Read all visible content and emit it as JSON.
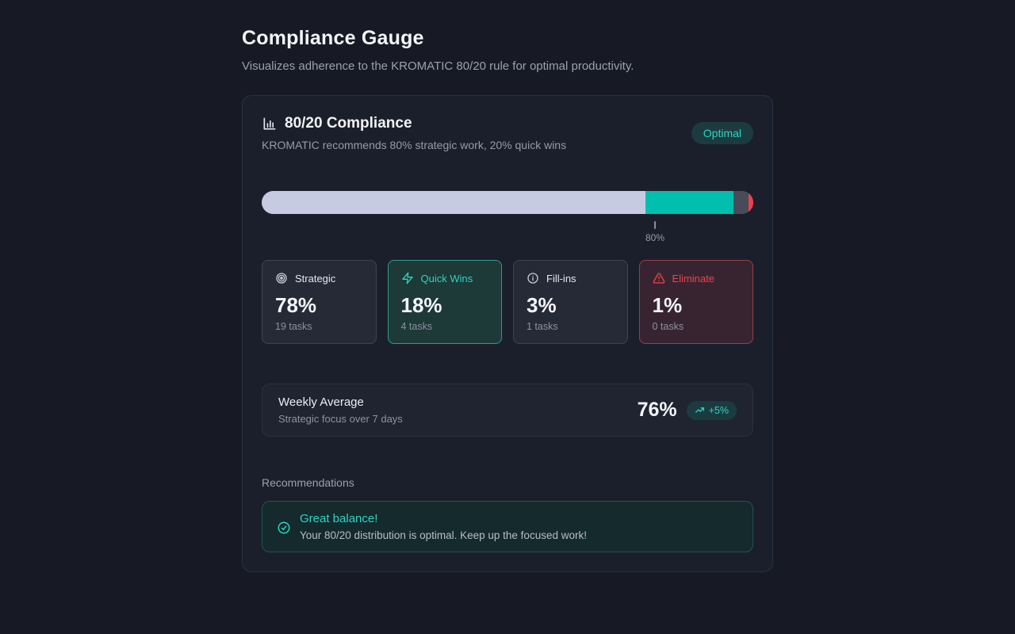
{
  "page": {
    "title": "Compliance Gauge",
    "subtitle": "Visualizes adherence to the KROMATIC 80/20 rule for optimal productivity."
  },
  "card": {
    "title": "80/20 Compliance",
    "subtitle": "KROMATIC recommends 80% strategic work, 20% quick wins",
    "badge": "Optimal"
  },
  "gauge": {
    "target_percent": 80,
    "target_label": "80%",
    "segments": [
      {
        "name": "Strategic",
        "percent": 78,
        "color": "#c6cbe1"
      },
      {
        "name": "Quick Wins",
        "percent": 18,
        "color": "#00bfae"
      },
      {
        "name": "Fill-ins",
        "percent": 3,
        "color": "#474c59"
      },
      {
        "name": "Eliminate",
        "percent": 1,
        "color": "#f0404a"
      }
    ]
  },
  "stats": [
    {
      "label": "Strategic",
      "icon": "target-icon",
      "value": "78%",
      "tasks": "19 tasks"
    },
    {
      "label": "Quick Wins",
      "icon": "zap-icon",
      "value": "18%",
      "tasks": "4 tasks"
    },
    {
      "label": "Fill-ins",
      "icon": "info-icon",
      "value": "3%",
      "tasks": "1 tasks"
    },
    {
      "label": "Eliminate",
      "icon": "alert-triangle-icon",
      "value": "1%",
      "tasks": "0 tasks"
    }
  ],
  "weekly": {
    "title": "Weekly Average",
    "subtitle": "Strategic focus over 7 days",
    "value": "76%",
    "delta": "+5%"
  },
  "recommendations": {
    "heading": "Recommendations",
    "items": [
      {
        "title": "Great balance!",
        "body": "Your 80/20 distribution is optimal. Keep up the focused work!"
      }
    ]
  },
  "colors": {
    "accent_teal": "#2dd4bf",
    "status_red": "#ef4449",
    "strategic_lavender": "#c6cbe1",
    "background": "#171a25",
    "card_background": "#1b1f2b"
  }
}
